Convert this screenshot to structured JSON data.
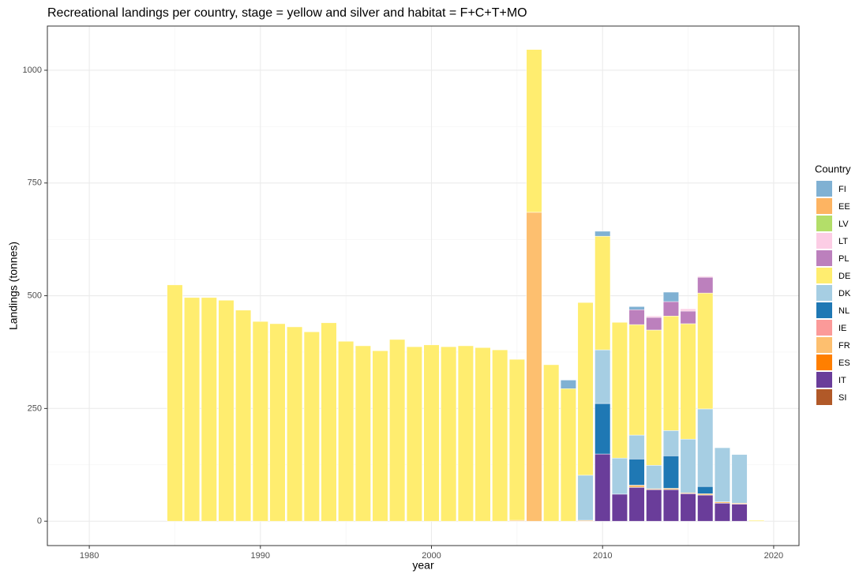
{
  "chart_data": {
    "type": "bar",
    "stacked": true,
    "title": "Recreational landings per country, stage = yellow and silver  and habitat = F+C+T+MO",
    "xlabel": "year",
    "ylabel": "Landings (tonnes)",
    "legend_title": "Country",
    "legend": "right",
    "grid": true,
    "x": [
      1985,
      1986,
      1987,
      1988,
      1989,
      1990,
      1991,
      1992,
      1993,
      1994,
      1995,
      1996,
      1997,
      1998,
      1999,
      2000,
      2001,
      2002,
      2003,
      2004,
      2005,
      2006,
      2007,
      2008,
      2009,
      2010,
      2011,
      2012,
      2013,
      2014,
      2015,
      2016,
      2017,
      2018,
      2019
    ],
    "xlim": [
      1977.55,
      2021.48
    ],
    "xticks": [
      1980,
      1990,
      2000,
      2010,
      2020
    ],
    "ylim": [
      -54,
      1098
    ],
    "yticks": [
      0,
      250,
      500,
      750,
      1000
    ],
    "series": [
      {
        "name": "FI",
        "color": "#80b1d3",
        "values": [
          0,
          0,
          0,
          0,
          0,
          0,
          0,
          0,
          0,
          0,
          0,
          0,
          0,
          0,
          0,
          0,
          0,
          0,
          0,
          0,
          0,
          0,
          0,
          19,
          0,
          11,
          0,
          7,
          0,
          21,
          0,
          0,
          0,
          0,
          0
        ]
      },
      {
        "name": "EE",
        "color": "#fdb462",
        "values": [
          0,
          0,
          0,
          0,
          0,
          0,
          0,
          0,
          0,
          0,
          0,
          0,
          0,
          0,
          0,
          0,
          0,
          0,
          0,
          0,
          0,
          0,
          0,
          0,
          0,
          0,
          0,
          0,
          0,
          0,
          0,
          0,
          0,
          0,
          0
        ]
      },
      {
        "name": "LV",
        "color": "#b3de69",
        "values": [
          0,
          0,
          0,
          0,
          0,
          0,
          0,
          0,
          0,
          0,
          0,
          0,
          0,
          0,
          0,
          0,
          0,
          0,
          0,
          0,
          0,
          0,
          0,
          0,
          0,
          0,
          0,
          0,
          0,
          0,
          0,
          0,
          0,
          0,
          0
        ]
      },
      {
        "name": "LT",
        "color": "#fccde5",
        "values": [
          0,
          0,
          0,
          0,
          0,
          0,
          0,
          0,
          0,
          0,
          0,
          0,
          0,
          0,
          0,
          0,
          0,
          0,
          0,
          0,
          0,
          0,
          0,
          0,
          0,
          0,
          0,
          0,
          3,
          0,
          5,
          2,
          0,
          0,
          0
        ]
      },
      {
        "name": "PL",
        "color": "#bc80bd",
        "values": [
          0,
          0,
          0,
          0,
          0,
          0,
          0,
          0,
          0,
          0,
          0,
          0,
          0,
          0,
          0,
          0,
          0,
          0,
          0,
          0,
          0,
          0,
          0,
          0,
          0,
          0,
          0,
          33,
          28,
          32,
          28,
          35,
          0,
          0,
          0
        ]
      },
      {
        "name": "DE",
        "color": "#ffed6f",
        "values": [
          524,
          496,
          496,
          490,
          468,
          443,
          438,
          431,
          420,
          440,
          399,
          389,
          378,
          403,
          387,
          391,
          387,
          389,
          385,
          380,
          357,
          361,
          347,
          294,
          383,
          252,
          301,
          245,
          300,
          254,
          256,
          257,
          0,
          0,
          2
        ]
      },
      {
        "name": "DK",
        "color": "#a6cee3",
        "values": [
          0,
          0,
          0,
          0,
          0,
          0,
          0,
          0,
          0,
          0,
          0,
          0,
          0,
          0,
          0,
          0,
          0,
          0,
          0,
          0,
          0,
          0,
          0,
          0,
          100,
          119,
          80,
          53,
          52,
          56,
          119,
          172,
          120,
          108,
          0
        ]
      },
      {
        "name": "NL",
        "color": "#1f78b4",
        "values": [
          0,
          0,
          0,
          0,
          0,
          0,
          0,
          0,
          0,
          0,
          0,
          0,
          0,
          0,
          0,
          0,
          0,
          0,
          0,
          0,
          0,
          0,
          0,
          0,
          0,
          112,
          0,
          58,
          0,
          72,
          0,
          16,
          0,
          0,
          0
        ]
      },
      {
        "name": "IE",
        "color": "#fb9a99",
        "values": [
          0,
          0,
          0,
          0,
          0,
          0,
          0,
          0,
          0,
          0,
          0,
          0,
          0,
          0,
          0,
          0,
          0,
          0,
          0,
          0,
          0,
          0,
          0,
          0,
          0,
          0,
          0,
          0,
          0,
          0,
          0,
          0,
          0,
          0,
          0
        ]
      },
      {
        "name": "FR",
        "color": "#fdbf6f",
        "values": [
          0,
          0,
          0,
          0,
          0,
          0,
          0,
          0,
          0,
          0,
          0,
          0,
          0,
          0,
          0,
          0,
          0,
          0,
          0,
          0,
          2,
          685,
          0,
          0,
          2,
          0,
          0,
          5,
          2,
          3,
          2,
          3,
          3,
          2,
          0
        ]
      },
      {
        "name": "ES",
        "color": "#ff7f00",
        "values": [
          0,
          0,
          0,
          0,
          0,
          0,
          0,
          0,
          0,
          0,
          0,
          0,
          0,
          0,
          0,
          0,
          0,
          0,
          0,
          0,
          0,
          0,
          0,
          0,
          0,
          0,
          0,
          0,
          0,
          0,
          0,
          0,
          0,
          0,
          0
        ]
      },
      {
        "name": "IT",
        "color": "#6a3d9a",
        "values": [
          0,
          0,
          0,
          0,
          0,
          0,
          0,
          0,
          0,
          0,
          0,
          0,
          0,
          0,
          0,
          0,
          0,
          0,
          0,
          0,
          0,
          0,
          0,
          0,
          0,
          149,
          60,
          75,
          70,
          70,
          61,
          58,
          40,
          38,
          0
        ]
      },
      {
        "name": "SI",
        "color": "#b15928",
        "values": [
          0,
          0,
          0,
          0,
          0,
          0,
          0,
          0,
          0,
          0,
          0,
          0,
          0,
          0,
          0,
          0,
          0,
          0,
          0,
          0,
          0,
          0,
          0,
          0,
          0,
          0,
          0,
          0,
          0,
          0,
          0,
          0,
          0,
          0,
          0
        ]
      }
    ]
  }
}
